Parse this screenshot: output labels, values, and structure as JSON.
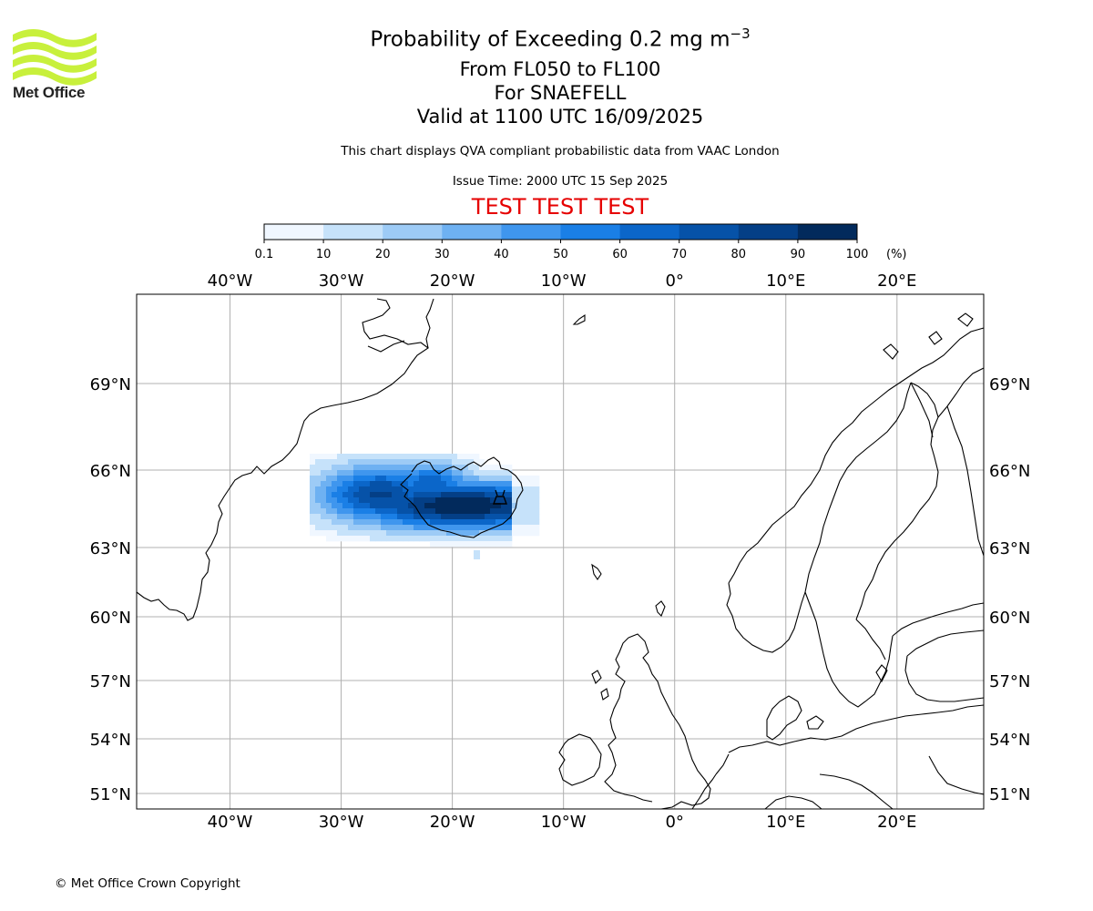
{
  "header": {
    "logo_text": "Met Office",
    "title": "Probability of Exceeding 0.2 mg m",
    "title_superscript": "−3",
    "subtitle_levels": "From FL050 to FL100",
    "subtitle_volcano": "For SNAEFELL",
    "subtitle_valid": "Valid at 1100 UTC 16/09/2025",
    "note": "This chart displays QVA compliant probabilistic data from VAAC London",
    "issue_time": "Issue Time: 2000 UTC 15 Sep 2025",
    "test_banner": "TEST TEST TEST"
  },
  "colorbar": {
    "unit": "(%)",
    "ticks": [
      "0.1",
      "10",
      "20",
      "30",
      "40",
      "50",
      "60",
      "70",
      "80",
      "90",
      "100"
    ],
    "colors": [
      "#f0f7ff",
      "#c6e2fa",
      "#9dcbf6",
      "#6eb1f2",
      "#3f96ee",
      "#1a7fe6",
      "#0b66c9",
      "#0652a8",
      "#043f86",
      "#022a5c"
    ]
  },
  "map": {
    "lon_labels": [
      "40°W",
      "30°W",
      "20°W",
      "10°W",
      "0°",
      "10°E",
      "20°E"
    ],
    "lat_labels": [
      "69°N",
      "66°N",
      "63°N",
      "60°N",
      "57°N",
      "54°N",
      "51°N"
    ],
    "grid": true,
    "volcano_name": "SNAEFELL",
    "volcano_icon": "volcano-icon",
    "plume": {
      "extent_lon": [
        -33,
        -15
      ],
      "extent_lat": [
        63.5,
        66.5
      ],
      "peak_probability_percent": 100,
      "core_location": "south and east Iceland"
    }
  },
  "footer": {
    "copyright": "© Met Office Crown Copyright"
  }
}
